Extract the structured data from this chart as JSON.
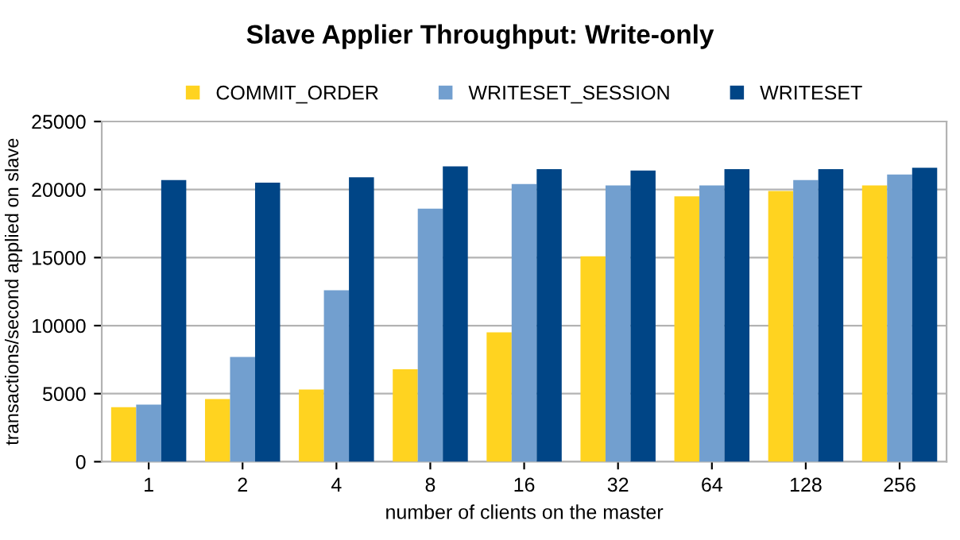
{
  "chart_data": {
    "type": "bar",
    "title": "Slave Applier Throughput: Write-only",
    "xlabel": "number of clients on the master",
    "ylabel": "transactions/second applied on slave",
    "categories": [
      "1",
      "2",
      "4",
      "8",
      "16",
      "32",
      "64",
      "128",
      "256"
    ],
    "series": [
      {
        "name": "COMMIT_ORDER",
        "color": "#ffd320",
        "values": [
          4000,
          4600,
          5300,
          6800,
          9500,
          15100,
          19500,
          19900,
          20300
        ]
      },
      {
        "name": "WRITESET_SESSION",
        "color": "#729fcf",
        "values": [
          4200,
          7700,
          12600,
          18600,
          20400,
          20300,
          20300,
          20700,
          21100
        ]
      },
      {
        "name": "WRITESET",
        "color": "#004586",
        "values": [
          20700,
          20500,
          20900,
          21700,
          21500,
          21400,
          21500,
          21500,
          21600
        ]
      }
    ],
    "ylim": [
      0,
      25000
    ],
    "yticks": [
      0,
      5000,
      10000,
      15000,
      20000,
      25000
    ],
    "grid": "y",
    "legend": "top"
  }
}
